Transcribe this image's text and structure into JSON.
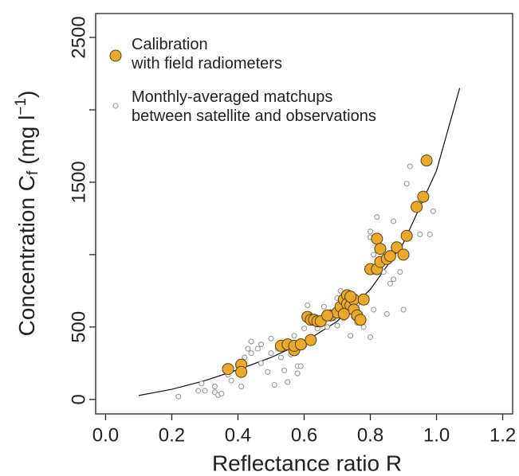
{
  "chart_data": {
    "type": "scatter",
    "xlabel": "Reflectance ratio R",
    "ylabel": [
      "Concentration C",
      "f",
      " (mg l",
      "−1",
      ")"
    ],
    "xlim": [
      -0.03,
      1.23
    ],
    "ylim": [
      -100,
      2665
    ],
    "xticks": [
      {
        "value": 0,
        "label": "0.0"
      },
      0.2,
      0.4,
      0.6,
      0.8,
      {
        "value": 1,
        "label": "1.0"
      },
      1.2
    ],
    "yticks": [
      0,
      500,
      {
        "value": 1000,
        "label": null
      },
      1500,
      {
        "value": 2000,
        "label": null
      },
      2500
    ],
    "series": [
      {
        "name": "Calibration\nwith field radiometers",
        "color": "#e8a92c",
        "x": [
          0.37,
          0.41,
          0.41,
          0.53,
          0.55,
          0.57,
          0.57,
          0.59,
          0.61,
          0.62,
          0.63,
          0.64,
          0.62,
          0.65,
          0.68,
          0.7,
          0.71,
          0.72,
          0.73,
          0.73,
          0.74,
          0.75,
          0.75,
          0.76,
          0.77,
          0.78,
          0.8,
          0.82,
          0.82,
          0.83,
          0.83,
          0.85,
          0.86,
          0.88,
          0.9,
          0.91,
          0.94,
          0.96,
          0.97,
          0.67,
          0.72,
          0.74
        ],
        "values": [
          210,
          240,
          190,
          370,
          380,
          340,
          370,
          380,
          570,
          550,
          550,
          540,
          410,
          540,
          580,
          600,
          640,
          690,
          720,
          660,
          650,
          690,
          620,
          580,
          550,
          690,
          900,
          1110,
          900,
          1040,
          950,
          970,
          990,
          1050,
          1000,
          1130,
          1330,
          1400,
          1650,
          580,
          590,
          710
        ]
      },
      {
        "name": "Monthly-averaged matchups\nbetween satellite and observations",
        "color": "#999999",
        "x": [
          0.22,
          0.28,
          0.29,
          0.3,
          0.33,
          0.33,
          0.34,
          0.35,
          0.37,
          0.38,
          0.4,
          0.41,
          0.42,
          0.43,
          0.44,
          0.44,
          0.46,
          0.47,
          0.47,
          0.49,
          0.5,
          0.5,
          0.51,
          0.52,
          0.53,
          0.54,
          0.55,
          0.56,
          0.57,
          0.57,
          0.58,
          0.59,
          0.58,
          0.6,
          0.6,
          0.61,
          0.62,
          0.64,
          0.65,
          0.66,
          0.67,
          0.68,
          0.69,
          0.7,
          0.7,
          0.71,
          0.72,
          0.73,
          0.74,
          0.75,
          0.76,
          0.76,
          0.78,
          0.8,
          0.8,
          0.8,
          0.81,
          0.81,
          0.82,
          0.84,
          0.85,
          0.86,
          0.87,
          0.87,
          0.89,
          0.9,
          0.91,
          0.92,
          0.95,
          0.98,
          0.99
        ],
        "values": [
          20,
          60,
          110,
          60,
          90,
          50,
          30,
          40,
          170,
          130,
          240,
          90,
          290,
          350,
          400,
          320,
          350,
          380,
          250,
          190,
          420,
          320,
          100,
          350,
          290,
          200,
          120,
          310,
          390,
          440,
          230,
          230,
          180,
          370,
          490,
          650,
          540,
          490,
          560,
          640,
          500,
          600,
          560,
          700,
          510,
          750,
          560,
          640,
          440,
          570,
          660,
          530,
          500,
          430,
          1120,
          1160,
          620,
          1000,
          1260,
          880,
          590,
          800,
          830,
          1230,
          880,
          620,
          1490,
          1610,
          1140,
          1140,
          1300
        ]
      }
    ],
    "fit": {
      "x": [
        0.1,
        0.2,
        0.3,
        0.4,
        0.5,
        0.6,
        0.7,
        0.8,
        0.9,
        1.0,
        1.07
      ],
      "y": [
        27,
        70,
        130,
        205,
        290,
        395,
        540,
        760,
        1080,
        1580,
        2150
      ]
    }
  }
}
